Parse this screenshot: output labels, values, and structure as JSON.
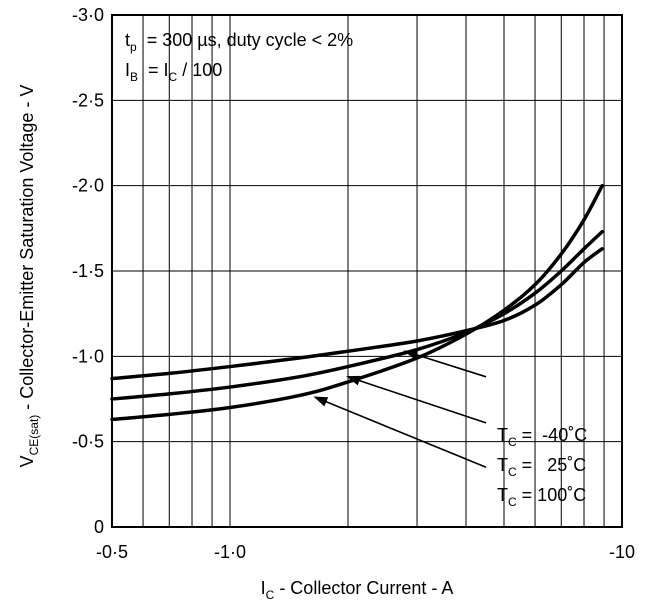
{
  "chart_data": {
    "type": "line",
    "title": "",
    "xlabel": {
      "main": "I",
      "sub": "C",
      "rest": " - Collector Current - A"
    },
    "ylabel": {
      "main": "V",
      "sub": "CE(sat)",
      "rest": " - Collector-Emitter Saturation Voltage - V"
    },
    "x_scale": "log",
    "xlim": [
      0.5,
      10
    ],
    "ylim": [
      0,
      -3.0
    ],
    "grid": true,
    "x_ticks": [
      {
        "value": 0.5,
        "label": "-0·5"
      },
      {
        "value": 1.0,
        "label": "-1·0"
      },
      {
        "value": 10,
        "label": "-10"
      }
    ],
    "y_ticks": [
      {
        "value": 0,
        "label": "0"
      },
      {
        "value": -0.5,
        "label": "-0·5"
      },
      {
        "value": -1.0,
        "label": "-1·0"
      },
      {
        "value": -1.5,
        "label": "-1·5"
      },
      {
        "value": -2.0,
        "label": "-2·0"
      },
      {
        "value": -2.5,
        "label": "-2·5"
      },
      {
        "value": -3.0,
        "label": "-3·0"
      }
    ],
    "conditions": [
      {
        "main": "t",
        "sub": "p",
        "rest": "  = 300 µs, duty cycle < 2%"
      },
      {
        "main": "I",
        "sub": "B",
        "rest": "  = I",
        "sub2": "C",
        "rest2": " / 100"
      }
    ],
    "series": [
      {
        "label": {
          "main": "T",
          "sub": "C",
          "rest": " =  -40˚C"
        },
        "points": [
          [
            0.5,
            -0.87
          ],
          [
            0.7,
            -0.9
          ],
          [
            1.0,
            -0.94
          ],
          [
            1.5,
            -0.99
          ],
          [
            2.0,
            -1.03
          ],
          [
            3.0,
            -1.09
          ],
          [
            4.0,
            -1.15
          ],
          [
            5.0,
            -1.21
          ],
          [
            6.0,
            -1.3
          ],
          [
            7.0,
            -1.42
          ],
          [
            8.0,
            -1.55
          ],
          [
            8.9,
            -1.63
          ]
        ]
      },
      {
        "label": {
          "main": "T",
          "sub": "C",
          "rest": " =   25˚C"
        },
        "points": [
          [
            0.5,
            -0.75
          ],
          [
            0.7,
            -0.78
          ],
          [
            1.0,
            -0.82
          ],
          [
            1.5,
            -0.88
          ],
          [
            2.0,
            -0.94
          ],
          [
            3.0,
            -1.04
          ],
          [
            4.0,
            -1.14
          ],
          [
            5.0,
            -1.25
          ],
          [
            6.0,
            -1.37
          ],
          [
            7.0,
            -1.5
          ],
          [
            8.0,
            -1.63
          ],
          [
            8.9,
            -1.73
          ]
        ]
      },
      {
        "label": {
          "main": "T",
          "sub": "C",
          "rest": " = 100˚C"
        },
        "points": [
          [
            0.5,
            -0.63
          ],
          [
            0.7,
            -0.66
          ],
          [
            1.0,
            -0.7
          ],
          [
            1.5,
            -0.77
          ],
          [
            2.0,
            -0.85
          ],
          [
            3.0,
            -0.99
          ],
          [
            4.0,
            -1.13
          ],
          [
            5.0,
            -1.27
          ],
          [
            6.0,
            -1.42
          ],
          [
            7.0,
            -1.6
          ],
          [
            8.0,
            -1.8
          ],
          [
            8.9,
            -2.0
          ]
        ]
      }
    ],
    "arrows": [
      {
        "from": [
          4.5,
          -0.88
        ],
        "to": [
          2.8,
          -1.03
        ]
      },
      {
        "from": [
          4.5,
          -0.61
        ],
        "to": [
          2.0,
          -0.88
        ]
      },
      {
        "from": [
          4.5,
          -0.35
        ],
        "to": [
          1.65,
          -0.76
        ]
      }
    ]
  }
}
